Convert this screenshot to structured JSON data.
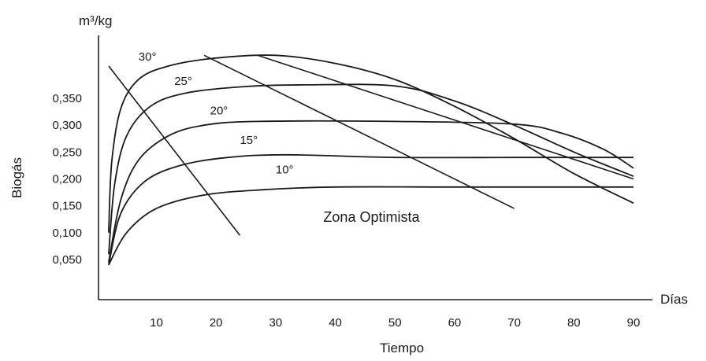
{
  "chart_data": {
    "type": "line",
    "title": "",
    "ylabel": "Biogás",
    "yunit": "m³/kg",
    "xlabel": "Tiempo",
    "xunit": "Días",
    "xlim": [
      0,
      92
    ],
    "ylim": [
      0,
      0.46
    ],
    "x_ticks": [
      10,
      20,
      30,
      40,
      50,
      60,
      70,
      80,
      90
    ],
    "x_tick_labels": [
      "10",
      "20",
      "30",
      "40",
      "50",
      "60",
      "70",
      "80",
      "90"
    ],
    "y_ticks": [
      0.05,
      0.1,
      0.15,
      0.2,
      0.25,
      0.3,
      0.35
    ],
    "y_tick_labels": [
      "0,050",
      "0,100",
      "0,150",
      "0,200",
      "0,250",
      "0,300",
      "0,350"
    ],
    "grid": false,
    "legend": "none",
    "series": [
      {
        "name": "30°",
        "label_at": [
          7,
          0.42
        ],
        "points": [
          [
            2,
            0.1
          ],
          [
            2.5,
            0.23
          ],
          [
            4,
            0.33
          ],
          [
            7,
            0.385
          ],
          [
            12,
            0.41
          ],
          [
            20,
            0.425
          ],
          [
            30,
            0.43
          ],
          [
            40,
            0.415
          ],
          [
            50,
            0.385
          ],
          [
            60,
            0.335
          ],
          [
            70,
            0.275
          ],
          [
            80,
            0.21
          ],
          [
            90,
            0.155
          ]
        ]
      },
      {
        "name": "25°",
        "label_at": [
          13,
          0.375
        ],
        "points": [
          [
            2,
            0.06
          ],
          [
            3,
            0.19
          ],
          [
            5,
            0.28
          ],
          [
            9,
            0.335
          ],
          [
            15,
            0.36
          ],
          [
            25,
            0.372
          ],
          [
            35,
            0.375
          ],
          [
            50,
            0.373
          ],
          [
            60,
            0.345
          ],
          [
            70,
            0.3
          ],
          [
            80,
            0.25
          ],
          [
            90,
            0.205
          ]
        ]
      },
      {
        "name": "20°",
        "label_at": [
          19,
          0.32
        ],
        "points": [
          [
            2,
            0.045
          ],
          [
            4,
            0.16
          ],
          [
            7,
            0.235
          ],
          [
            12,
            0.28
          ],
          [
            18,
            0.3
          ],
          [
            27,
            0.307
          ],
          [
            50,
            0.307
          ],
          [
            70,
            0.302
          ],
          [
            78,
            0.285
          ],
          [
            85,
            0.255
          ],
          [
            90,
            0.22
          ]
        ]
      },
      {
        "name": "15°",
        "label_at": [
          24,
          0.265
        ],
        "points": [
          [
            2,
            0.04
          ],
          [
            4,
            0.135
          ],
          [
            8,
            0.195
          ],
          [
            14,
            0.225
          ],
          [
            22,
            0.24
          ],
          [
            32,
            0.245
          ],
          [
            50,
            0.24
          ],
          [
            70,
            0.24
          ],
          [
            90,
            0.24
          ]
        ]
      },
      {
        "name": "10°",
        "label_at": [
          30,
          0.21
        ],
        "points": [
          [
            2,
            0.04
          ],
          [
            5,
            0.1
          ],
          [
            10,
            0.145
          ],
          [
            18,
            0.17
          ],
          [
            28,
            0.18
          ],
          [
            40,
            0.185
          ],
          [
            60,
            0.185
          ],
          [
            80,
            0.185
          ],
          [
            90,
            0.185
          ]
        ]
      }
    ],
    "boundary_lines": [
      {
        "from": [
          2,
          0.41
        ],
        "to": [
          24,
          0.095
        ]
      },
      {
        "from": [
          18,
          0.43
        ],
        "to": [
          70,
          0.145
        ]
      },
      {
        "from": [
          27,
          0.43
        ],
        "to": [
          90,
          0.2
        ]
      }
    ],
    "annotations": [
      {
        "text": "Zona Optimista",
        "at": [
          38,
          0.12
        ]
      }
    ]
  }
}
